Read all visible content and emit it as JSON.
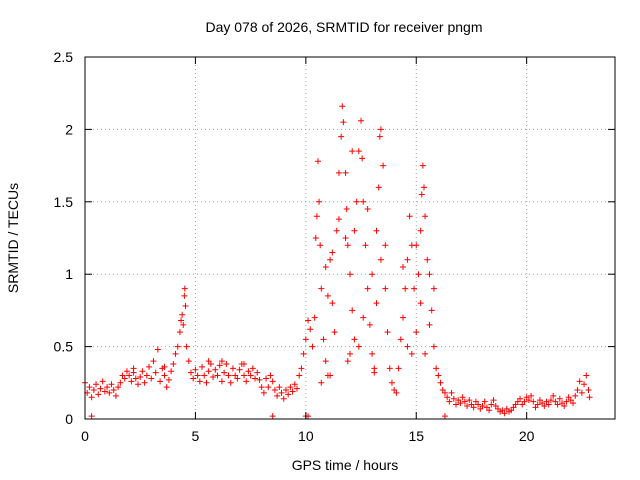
{
  "chart_data": {
    "type": "scatter",
    "title": "Day 078 of 2026, SRMTID for receiver pngm",
    "xlabel": "GPS time / hours",
    "ylabel": "SRMTID / TECUs",
    "xlim": [
      0,
      24
    ],
    "ylim": [
      0,
      2.5
    ],
    "x_ticks": [
      0,
      5,
      10,
      15,
      20
    ],
    "x_tick_labels": [
      "0",
      "5",
      "10",
      "15",
      "20"
    ],
    "y_ticks": [
      0,
      0.5,
      1,
      1.5,
      2,
      2.5
    ],
    "y_tick_labels": [
      "0",
      "0.5",
      "1",
      "1.5",
      "2",
      "2.5"
    ],
    "grid": true,
    "marker": "+",
    "color": "#ff0000",
    "series": [
      {
        "name": "SRMTID",
        "points": [
          [
            0.0,
            0.25
          ],
          [
            0.1,
            0.18
          ],
          [
            0.2,
            0.22
          ],
          [
            0.3,
            0.15
          ],
          [
            0.4,
            0.2
          ],
          [
            0.5,
            0.24
          ],
          [
            0.6,
            0.17
          ],
          [
            0.7,
            0.21
          ],
          [
            0.8,
            0.26
          ],
          [
            0.9,
            0.19
          ],
          [
            1.0,
            0.22
          ],
          [
            1.1,
            0.18
          ],
          [
            1.2,
            0.24
          ],
          [
            1.3,
            0.2
          ],
          [
            1.4,
            0.16
          ],
          [
            1.5,
            0.22
          ],
          [
            1.6,
            0.25
          ],
          [
            1.7,
            0.3
          ],
          [
            1.8,
            0.28
          ],
          [
            1.9,
            0.33
          ],
          [
            2.0,
            0.3
          ],
          [
            2.1,
            0.26
          ],
          [
            2.2,
            0.32
          ],
          [
            2.3,
            0.28
          ],
          [
            2.4,
            0.24
          ],
          [
            2.5,
            0.29
          ],
          [
            2.6,
            0.33
          ],
          [
            2.7,
            0.25
          ],
          [
            2.8,
            0.3
          ],
          [
            2.9,
            0.36
          ],
          [
            3.0,
            0.28
          ],
          [
            3.1,
            0.4
          ],
          [
            3.2,
            0.32
          ],
          [
            3.3,
            0.48
          ],
          [
            3.4,
            0.26
          ],
          [
            3.5,
            0.35
          ],
          [
            3.6,
            0.3
          ],
          [
            3.7,
            0.22
          ],
          [
            3.8,
            0.27
          ],
          [
            3.9,
            0.33
          ],
          [
            4.0,
            0.38
          ],
          [
            4.1,
            0.45
          ],
          [
            4.2,
            0.5
          ],
          [
            4.3,
            0.6
          ],
          [
            4.35,
            0.68
          ],
          [
            4.4,
            0.72
          ],
          [
            4.45,
            0.65
          ],
          [
            4.5,
            0.85
          ],
          [
            4.52,
            0.9
          ],
          [
            4.55,
            0.78
          ],
          [
            4.6,
            0.5
          ],
          [
            4.7,
            0.4
          ],
          [
            4.8,
            0.32
          ],
          [
            4.9,
            0.28
          ],
          [
            5.0,
            0.34
          ],
          [
            5.1,
            0.3
          ],
          [
            5.2,
            0.26
          ],
          [
            5.3,
            0.36
          ],
          [
            5.4,
            0.3
          ],
          [
            5.5,
            0.25
          ],
          [
            5.6,
            0.33
          ],
          [
            5.7,
            0.38
          ],
          [
            5.8,
            0.29
          ],
          [
            5.9,
            0.34
          ],
          [
            6.0,
            0.3
          ],
          [
            6.1,
            0.37
          ],
          [
            6.2,
            0.26
          ],
          [
            6.3,
            0.32
          ],
          [
            6.4,
            0.38
          ],
          [
            6.5,
            0.3
          ],
          [
            6.6,
            0.25
          ],
          [
            6.7,
            0.35
          ],
          [
            6.8,
            0.3
          ],
          [
            6.9,
            0.28
          ],
          [
            7.0,
            0.34
          ],
          [
            7.1,
            0.38
          ],
          [
            7.2,
            0.3
          ],
          [
            7.3,
            0.26
          ],
          [
            7.4,
            0.33
          ],
          [
            7.5,
            0.3
          ],
          [
            7.6,
            0.35
          ],
          [
            7.7,
            0.28
          ],
          [
            7.8,
            0.32
          ],
          [
            7.9,
            0.27
          ],
          [
            8.0,
            0.22
          ],
          [
            8.1,
            0.18
          ],
          [
            8.2,
            0.28
          ],
          [
            8.3,
            0.22
          ],
          [
            8.4,
            0.3
          ],
          [
            8.5,
            0.26
          ],
          [
            8.6,
            0.2
          ],
          [
            8.7,
            0.16
          ],
          [
            8.8,
            0.22
          ],
          [
            8.9,
            0.18
          ],
          [
            9.0,
            0.14
          ],
          [
            9.1,
            0.2
          ],
          [
            9.2,
            0.17
          ],
          [
            9.3,
            0.22
          ],
          [
            9.4,
            0.19
          ],
          [
            9.5,
            0.24
          ],
          [
            9.6,
            0.21
          ],
          [
            9.7,
            0.3
          ],
          [
            9.8,
            0.35
          ],
          [
            9.9,
            0.45
          ],
          [
            10.0,
            0.55
          ],
          [
            10.1,
            0.68
          ],
          [
            10.2,
            0.62
          ],
          [
            10.3,
            0.5
          ],
          [
            10.4,
            0.7
          ],
          [
            10.45,
            1.25
          ],
          [
            10.5,
            1.4
          ],
          [
            10.55,
            1.78
          ],
          [
            10.6,
            1.5
          ],
          [
            10.65,
            1.2
          ],
          [
            10.7,
            0.9
          ],
          [
            10.8,
            0.55
          ],
          [
            10.9,
            0.4
          ],
          [
            11.0,
            0.85
          ],
          [
            11.1,
            1.1
          ],
          [
            11.2,
            0.8
          ],
          [
            11.3,
            0.6
          ],
          [
            11.4,
            1.3
          ],
          [
            11.5,
            1.7
          ],
          [
            11.6,
            1.95
          ],
          [
            11.65,
            2.16
          ],
          [
            11.7,
            2.05
          ],
          [
            11.8,
            1.7
          ],
          [
            11.85,
            1.45
          ],
          [
            11.9,
            1.2
          ],
          [
            12.0,
            1.0
          ],
          [
            12.1,
            0.75
          ],
          [
            12.2,
            0.55
          ],
          [
            12.3,
            1.5
          ],
          [
            12.4,
            1.85
          ],
          [
            12.5,
            2.06
          ],
          [
            12.55,
            1.8
          ],
          [
            12.6,
            1.5
          ],
          [
            12.7,
            1.2
          ],
          [
            12.8,
            0.9
          ],
          [
            12.9,
            0.65
          ],
          [
            13.0,
            0.45
          ],
          [
            13.1,
            0.35
          ],
          [
            13.2,
            1.3
          ],
          [
            13.3,
            1.6
          ],
          [
            13.35,
            1.95
          ],
          [
            13.4,
            2.0
          ],
          [
            13.5,
            1.75
          ],
          [
            13.6,
            1.2
          ],
          [
            13.7,
            0.6
          ],
          [
            13.8,
            0.35
          ],
          [
            13.9,
            0.25
          ],
          [
            14.0,
            0.2
          ],
          [
            14.1,
            0.18
          ],
          [
            14.2,
            0.35
          ],
          [
            14.3,
            0.55
          ],
          [
            14.4,
            0.7
          ],
          [
            14.5,
            0.9
          ],
          [
            14.6,
            1.1
          ],
          [
            14.7,
            1.4
          ],
          [
            14.8,
            1.2
          ],
          [
            14.9,
            0.9
          ],
          [
            15.0,
            0.6
          ],
          [
            15.1,
            1.0
          ],
          [
            15.2,
            1.3
          ],
          [
            15.25,
            1.55
          ],
          [
            15.3,
            1.75
          ],
          [
            15.35,
            1.6
          ],
          [
            15.4,
            1.4
          ],
          [
            15.5,
            1.1
          ],
          [
            15.6,
            1.0
          ],
          [
            15.7,
            0.75
          ],
          [
            15.8,
            0.5
          ],
          [
            15.9,
            0.35
          ],
          [
            16.0,
            0.3
          ],
          [
            16.1,
            0.25
          ],
          [
            16.2,
            0.2
          ],
          [
            16.3,
            0.18
          ],
          [
            16.4,
            0.15
          ],
          [
            16.5,
            0.12
          ],
          [
            16.6,
            0.18
          ],
          [
            16.7,
            0.14
          ],
          [
            16.8,
            0.1
          ],
          [
            16.9,
            0.13
          ],
          [
            17.0,
            0.11
          ],
          [
            17.1,
            0.15
          ],
          [
            17.2,
            0.12
          ],
          [
            17.3,
            0.09
          ],
          [
            17.4,
            0.13
          ],
          [
            17.5,
            0.1
          ],
          [
            17.6,
            0.08
          ],
          [
            17.7,
            0.12
          ],
          [
            17.8,
            0.1
          ],
          [
            17.9,
            0.07
          ],
          [
            18.0,
            0.09
          ],
          [
            18.1,
            0.12
          ],
          [
            18.2,
            0.08
          ],
          [
            18.3,
            0.06
          ],
          [
            18.4,
            0.1
          ],
          [
            18.5,
            0.13
          ],
          [
            18.6,
            0.09
          ],
          [
            18.7,
            0.07
          ],
          [
            18.8,
            0.05
          ],
          [
            18.9,
            0.06
          ],
          [
            19.0,
            0.04
          ],
          [
            19.1,
            0.07
          ],
          [
            19.2,
            0.05
          ],
          [
            19.3,
            0.06
          ],
          [
            19.4,
            0.08
          ],
          [
            19.5,
            0.1
          ],
          [
            19.6,
            0.12
          ],
          [
            19.7,
            0.14
          ],
          [
            19.8,
            0.1
          ],
          [
            19.9,
            0.12
          ],
          [
            20.0,
            0.15
          ],
          [
            20.1,
            0.13
          ],
          [
            20.2,
            0.16
          ],
          [
            20.3,
            0.12
          ],
          [
            20.4,
            0.08
          ],
          [
            20.5,
            0.1
          ],
          [
            20.6,
            0.13
          ],
          [
            20.7,
            0.11
          ],
          [
            20.8,
            0.09
          ],
          [
            20.9,
            0.12
          ],
          [
            21.0,
            0.1
          ],
          [
            21.1,
            0.13
          ],
          [
            21.2,
            0.16
          ],
          [
            21.3,
            0.12
          ],
          [
            21.4,
            0.1
          ],
          [
            21.5,
            0.14
          ],
          [
            21.6,
            0.11
          ],
          [
            21.7,
            0.09
          ],
          [
            21.8,
            0.12
          ],
          [
            21.9,
            0.15
          ],
          [
            22.0,
            0.13
          ],
          [
            22.1,
            0.11
          ],
          [
            22.2,
            0.16
          ],
          [
            22.3,
            0.2
          ],
          [
            22.4,
            0.26
          ],
          [
            22.5,
            0.18
          ],
          [
            22.6,
            0.24
          ],
          [
            22.7,
            0.3
          ],
          [
            22.8,
            0.2
          ],
          [
            22.85,
            0.15
          ],
          [
            2.2,
            0.35
          ],
          [
            3.6,
            0.36
          ],
          [
            5.6,
            0.4
          ],
          [
            6.2,
            0.4
          ],
          [
            7.2,
            0.38
          ],
          [
            12.0,
            0.45
          ],
          [
            11.0,
            0.3
          ],
          [
            11.2,
            1.15
          ],
          [
            11.5,
            1.38
          ],
          [
            11.8,
            1.25
          ],
          [
            12.2,
            1.3
          ],
          [
            12.6,
            0.7
          ],
          [
            12.8,
            1.45
          ],
          [
            13.0,
            1.0
          ],
          [
            13.2,
            0.8
          ],
          [
            13.4,
            1.1
          ],
          [
            13.6,
            0.9
          ],
          [
            14.4,
            1.05
          ],
          [
            14.6,
            0.5
          ],
          [
            14.8,
            0.45
          ],
          [
            15.0,
            1.2
          ],
          [
            15.2,
            0.8
          ],
          [
            15.4,
            0.45
          ],
          [
            15.6,
            0.65
          ],
          [
            15.8,
            0.9
          ],
          [
            10.9,
            1.05
          ],
          [
            10.7,
            0.25
          ],
          [
            11.1,
            0.3
          ],
          [
            11.9,
            0.4
          ],
          [
            12.1,
            1.85
          ],
          [
            13.1,
            0.32
          ],
          [
            0.3,
            0.02
          ],
          [
            8.5,
            0.02
          ],
          [
            10.0,
            0.02
          ],
          [
            10.1,
            0.02
          ],
          [
            16.3,
            0.02
          ],
          [
            12.4,
            0.5
          ]
        ]
      }
    ]
  }
}
